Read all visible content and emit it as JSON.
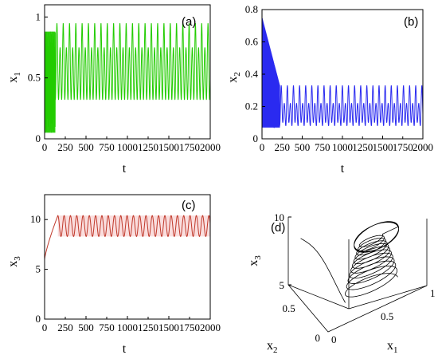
{
  "colors": {
    "panel_a": "#22cc00",
    "panel_b": "#2a2af0",
    "panel_c": "#c0392b",
    "panel_c_band": "#f6c8c8",
    "panel_d": "#000000"
  },
  "chart_data": [
    {
      "panel": "(a)",
      "type": "line",
      "xlabel": "t",
      "ylabel": "x",
      "ylabel_sub": "1",
      "xlim": [
        0,
        2000
      ],
      "ylim": [
        0,
        1.1
      ],
      "xticks": [
        "0",
        "500",
        "1000",
        "1500",
        "2000"
      ],
      "xticks_minor": [
        "250",
        "750",
        "1250",
        "1750"
      ],
      "yticks": [
        "0",
        "0.5",
        "1"
      ],
      "series": [
        {
          "transient": {
            "t_end": 130,
            "min": 0.05,
            "max": 0.88
          },
          "periodic": {
            "t_start": 130,
            "period": 76,
            "levels": [
              0.32,
              0.95,
              0.32,
              0.75
            ]
          }
        }
      ]
    },
    {
      "panel": "(b)",
      "type": "line",
      "xlabel": "t",
      "ylabel": "x",
      "ylabel_sub": "2",
      "xlim": [
        0,
        2000
      ],
      "ylim": [
        0,
        0.8
      ],
      "xticks": [
        "0",
        "500",
        "1000",
        "1500",
        "2000"
      ],
      "xticks_minor": [
        "250",
        "750",
        "1250",
        "1750"
      ],
      "yticks": [
        "0",
        "0.2",
        "0.4",
        "0.6",
        "0.8"
      ],
      "series": [
        {
          "transient": {
            "t_end": 220,
            "min": 0.07,
            "max": 0.55,
            "max_start": 0.75
          },
          "periodic": {
            "t_start": 220,
            "period": 76,
            "levels": [
              0.08,
              0.33,
              0.1,
              0.22
            ]
          }
        }
      ]
    },
    {
      "panel": "(c)",
      "type": "line",
      "xlabel": "t",
      "ylabel": "x",
      "ylabel_sub": "3",
      "xlim": [
        0,
        2000
      ],
      "ylim": [
        0,
        12.5
      ],
      "xticks": [
        "0",
        "500",
        "1000",
        "1500",
        "2000"
      ],
      "xticks_minor": [
        "250",
        "750",
        "1250",
        "1750"
      ],
      "yticks": [
        "0",
        "5",
        "10"
      ],
      "series": [
        {
          "initial": {
            "t_end": 160,
            "from": 6.0,
            "to": 10.4
          },
          "periodic": {
            "t_start": 160,
            "period": 76,
            "min": 8.3,
            "max": 10.4
          }
        }
      ]
    },
    {
      "panel": "(d)",
      "type": "line",
      "projection": "3d",
      "xlabel": "x",
      "xlabel_sub": "1",
      "ylabel": "x",
      "ylabel_sub": "2",
      "zlabel": "x",
      "zlabel_sub": "3",
      "xlim": [
        0,
        1
      ],
      "ylim": [
        0,
        0.8
      ],
      "zlim": [
        5,
        10
      ],
      "xticks": [
        "0",
        "0.5",
        "1"
      ],
      "yticks": [
        "0",
        "0.5"
      ],
      "zticks": [
        "5",
        "10"
      ],
      "series": [
        {
          "spiral_from": [
            0.4,
            0.2,
            5.3
          ],
          "attractor_center": [
            0.55,
            0.22,
            9.0
          ],
          "attractor_radius": [
            0.28,
            0.13
          ]
        }
      ]
    }
  ]
}
